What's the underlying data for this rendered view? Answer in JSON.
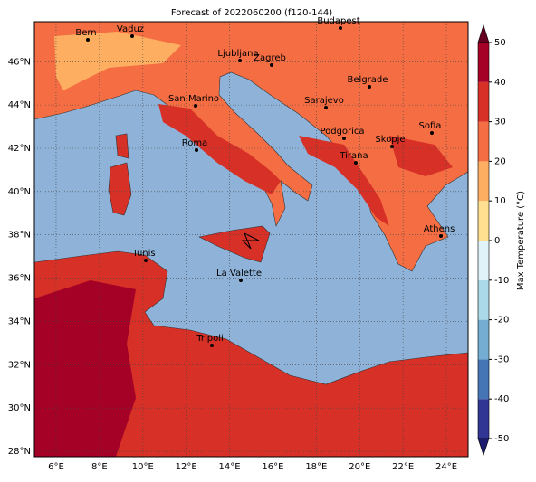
{
  "map": {
    "title": "Forecast of 2022060200 (f120-144)",
    "xlim": [
      5,
      25
    ],
    "ylim": [
      27.75,
      47.85
    ],
    "xticks": [
      {
        "value": 6,
        "label": "6°E"
      },
      {
        "value": 8,
        "label": "8°E"
      },
      {
        "value": 10,
        "label": "10°E"
      },
      {
        "value": 12,
        "label": "12°E"
      },
      {
        "value": 14,
        "label": "14°E"
      },
      {
        "value": 16,
        "label": "16°E"
      },
      {
        "value": 18,
        "label": "18°E"
      },
      {
        "value": 20,
        "label": "20°E"
      },
      {
        "value": 22,
        "label": "22°E"
      },
      {
        "value": 24,
        "label": "24°E"
      }
    ],
    "yticks": [
      {
        "value": 28,
        "label": "28°N"
      },
      {
        "value": 30,
        "label": "30°N"
      },
      {
        "value": 32,
        "label": "32°N"
      },
      {
        "value": 34,
        "label": "34°N"
      },
      {
        "value": 36,
        "label": "36°N"
      },
      {
        "value": 38,
        "label": "38°N"
      },
      {
        "value": 40,
        "label": "40°N"
      },
      {
        "value": 42,
        "label": "42°N"
      },
      {
        "value": 44,
        "label": "44°N"
      },
      {
        "value": 46,
        "label": "46°N"
      }
    ],
    "grid": true,
    "cities": [
      "Bern",
      "Vaduz",
      "Budapest",
      "Ljubljana",
      "Zagreb",
      "Belgrade",
      "San Marino",
      "Sarajevo",
      "Sofia",
      "Podgorica",
      "Skopje",
      "Roma",
      "Tirana",
      "Athens",
      "Tunis",
      "La Valette",
      "Tripoli"
    ],
    "colorbar": {
      "label": "Max Temperature (°C)",
      "lim": [
        -50,
        50
      ],
      "ticks": [
        50,
        40,
        30,
        20,
        10,
        0,
        -10,
        -20,
        -30,
        -40,
        -50
      ],
      "colors": [
        "#313695",
        "#4575b4",
        "#74add1",
        "#abd9e9",
        "#e0f3f8",
        "#fee090",
        "#fdae61",
        "#f46d43",
        "#d73027",
        "#a50026"
      ]
    }
  }
}
